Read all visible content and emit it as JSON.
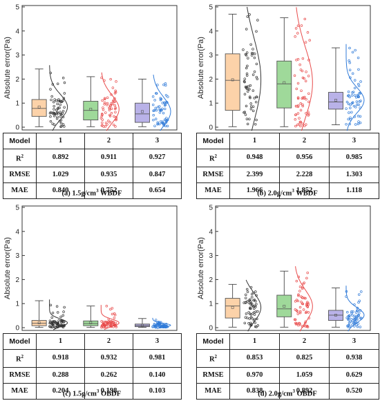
{
  "colors": {
    "model1": "#f7a35c",
    "model1_fill": "#fcd2a9",
    "model2_fill": "#9fd99a",
    "model2": "#e84a4a",
    "model3_fill": "#b9b2e8",
    "model3": "#2f7ad8",
    "dark": "#333333"
  },
  "chart_data": [
    {
      "type": "box",
      "caption_prefix": "(a) 1.5g/cm",
      "caption_sup": "3",
      "caption_suffix": " WBDF",
      "ylabel": "Absolute error(Pa)",
      "ylim": [
        0,
        5
      ],
      "yticks": [
        "0",
        "1",
        "2",
        "3",
        "4",
        "5"
      ],
      "categories": [
        "1",
        "2",
        "3"
      ],
      "boxes": [
        {
          "min": 0.02,
          "q1": 0.45,
          "median": 0.78,
          "q3": 1.15,
          "max": 2.42,
          "mean": 0.84
        },
        {
          "min": 0.02,
          "q1": 0.3,
          "median": 0.7,
          "q3": 1.08,
          "max": 2.1,
          "mean": 0.75
        },
        {
          "min": 0.02,
          "q1": 0.2,
          "median": 0.55,
          "q3": 1.0,
          "max": 2.0,
          "mean": 0.65
        }
      ],
      "table": {
        "header": "Model",
        "rows": [
          {
            "label": "R",
            "label_sup": "2",
            "values": [
              "0.892",
              "0.911",
              "0.927"
            ]
          },
          {
            "label": "RMSE",
            "label_sup": "",
            "values": [
              "1.029",
              "0.935",
              "0.847"
            ]
          },
          {
            "label": "MAE",
            "label_sup": "",
            "values": [
              "0.840",
              "0.752",
              "0.654"
            ]
          }
        ]
      }
    },
    {
      "type": "box",
      "caption_prefix": "(b) 2.0g/cm",
      "caption_sup": "3",
      "caption_suffix": " WBDF",
      "ylabel": "Absolute error(Pa)",
      "ylim": [
        0,
        5
      ],
      "yticks": [
        "0",
        "1",
        "2",
        "3",
        "4",
        "5"
      ],
      "categories": [
        "1",
        "2",
        "3"
      ],
      "boxes": [
        {
          "min": 0.02,
          "q1": 0.7,
          "median": 1.95,
          "q3": 3.05,
          "max": 4.7,
          "mean": 1.97
        },
        {
          "min": 0.02,
          "q1": 0.8,
          "median": 1.8,
          "q3": 2.75,
          "max": 4.55,
          "mean": 1.85
        },
        {
          "min": 0.1,
          "q1": 0.75,
          "median": 1.05,
          "q3": 1.45,
          "max": 3.3,
          "mean": 1.12
        }
      ],
      "table": {
        "header": "Model",
        "rows": [
          {
            "label": "R",
            "label_sup": "2",
            "values": [
              "0.948",
              "0.956",
              "0.985"
            ]
          },
          {
            "label": "RMSE",
            "label_sup": "",
            "values": [
              "2.399",
              "2.228",
              "1.303"
            ]
          },
          {
            "label": "MAE",
            "label_sup": "",
            "values": [
              "1.966",
              "1.852",
              "1.118"
            ]
          }
        ]
      }
    },
    {
      "type": "box",
      "caption_prefix": "(c) 1.5g/cm",
      "caption_sup": "3",
      "caption_suffix": " OBDF",
      "ylabel": "Absolute error(Pa)",
      "ylim": [
        0,
        5
      ],
      "yticks": [
        "0",
        "1",
        "2",
        "3",
        "4",
        "5"
      ],
      "categories": [
        "1",
        "2",
        "3"
      ],
      "boxes": [
        {
          "min": 0.01,
          "q1": 0.08,
          "median": 0.18,
          "q3": 0.3,
          "max": 1.12,
          "mean": 0.2
        },
        {
          "min": 0.01,
          "q1": 0.08,
          "median": 0.17,
          "q3": 0.28,
          "max": 0.9,
          "mean": 0.2
        },
        {
          "min": 0.01,
          "q1": 0.04,
          "median": 0.09,
          "q3": 0.15,
          "max": 0.38,
          "mean": 0.1
        }
      ],
      "table": {
        "header": "Model",
        "rows": [
          {
            "label": "R",
            "label_sup": "2",
            "values": [
              "0.918",
              "0.932",
              "0.981"
            ]
          },
          {
            "label": "RMSE",
            "label_sup": "",
            "values": [
              "0.288",
              "0.262",
              "0.140"
            ]
          },
          {
            "label": "MAE",
            "label_sup": "",
            "values": [
              "0.204",
              "0.198",
              "0.103"
            ]
          }
        ]
      }
    },
    {
      "type": "box",
      "caption_prefix": "(d) 2.0g/cm",
      "caption_sup": "3",
      "caption_suffix": " OBDF",
      "ylabel": "Absolute error(Pa)",
      "ylim": [
        0,
        5
      ],
      "yticks": [
        "0",
        "1",
        "2",
        "3",
        "4",
        "5"
      ],
      "categories": [
        "1",
        "2",
        "3"
      ],
      "boxes": [
        {
          "min": 0.02,
          "q1": 0.4,
          "median": 0.9,
          "q3": 1.22,
          "max": 1.8,
          "mean": 0.84
        },
        {
          "min": 0.02,
          "q1": 0.45,
          "median": 0.78,
          "q3": 1.35,
          "max": 2.35,
          "mean": 0.89
        },
        {
          "min": 0.02,
          "q1": 0.3,
          "median": 0.52,
          "q3": 0.72,
          "max": 1.65,
          "mean": 0.52
        }
      ],
      "table": {
        "header": "Model",
        "rows": [
          {
            "label": "R",
            "label_sup": "2",
            "values": [
              "0.853",
              "0.825",
              "0.938"
            ]
          },
          {
            "label": "RMSE",
            "label_sup": "",
            "values": [
              "0.970",
              "1.059",
              "0.629"
            ]
          },
          {
            "label": "MAE",
            "label_sup": "",
            "values": [
              "0.838",
              "0.892",
              "0.520"
            ]
          }
        ]
      }
    }
  ]
}
